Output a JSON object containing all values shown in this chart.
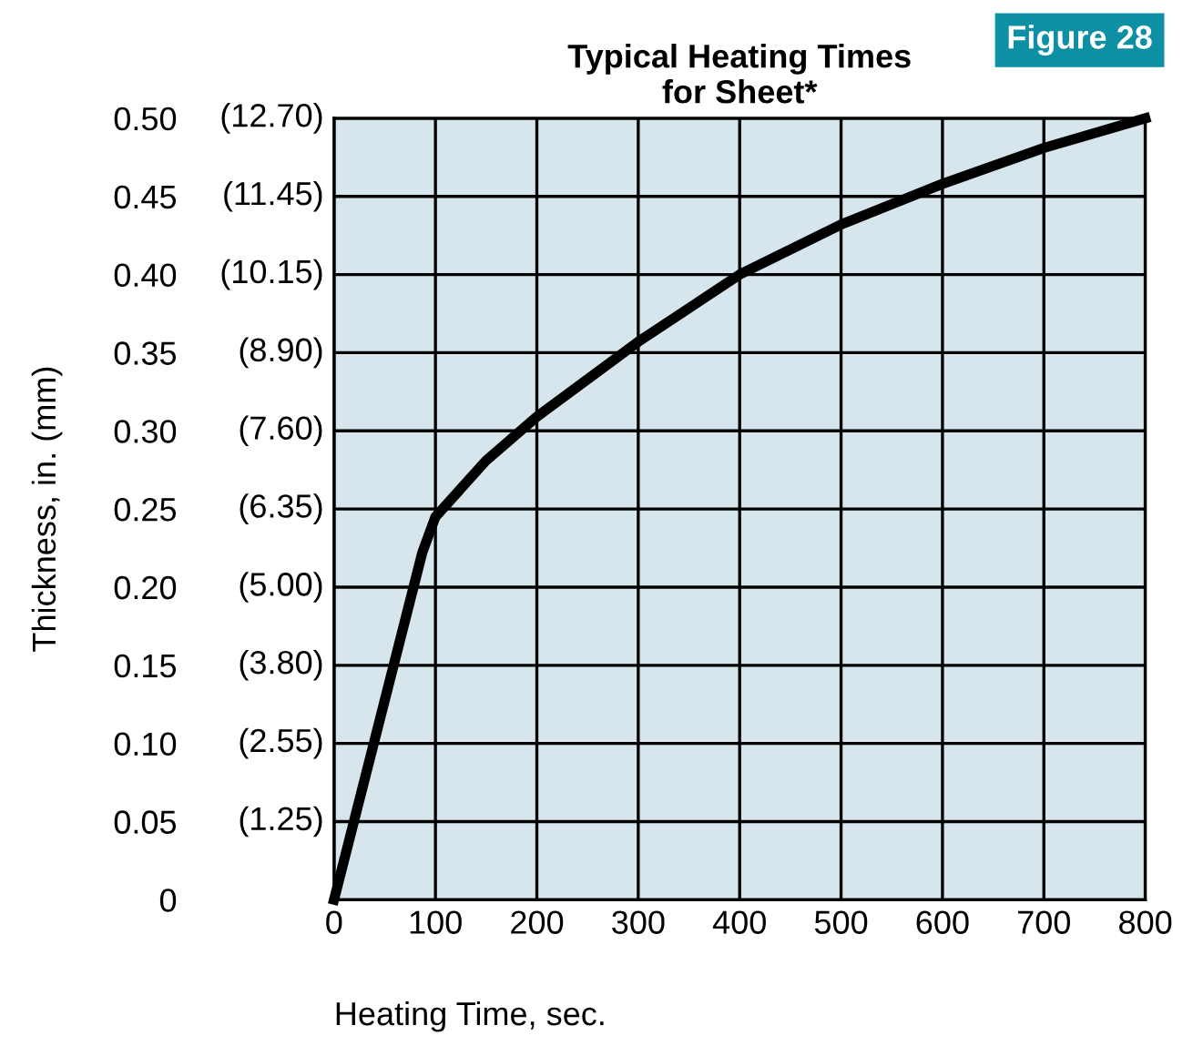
{
  "chart_data": {
    "type": "line",
    "title": "Typical Heating Times\nfor Sheet*",
    "xlabel": "Heating Time, sec.",
    "ylabel": "Thickness, in. (mm)",
    "annotations": [
      "Figure 28",
      "(1.25)",
      "(2.55)",
      "(3.80)",
      "(5.00)",
      "(6.35)",
      "(7.60)",
      "(8.90)",
      "(10.15)",
      "(11.45)",
      "(12.70)"
    ],
    "x": [
      0,
      87,
      100,
      150,
      200,
      300,
      400,
      500,
      600,
      700,
      800
    ],
    "series": [
      {
        "color": "#000000",
        "values": [
          0,
          0.222,
          0.245,
          0.281,
          0.309,
          0.357,
          0.4,
          0.432,
          0.458,
          0.481,
          0.5
        ]
      }
    ],
    "xlim": [
      0,
      800
    ],
    "xticks": [
      0,
      100,
      200,
      300,
      400,
      500,
      600,
      700,
      800
    ],
    "ylim": [
      0,
      0.5
    ],
    "yticks": [
      0,
      0.05,
      {
        "value": 0.1,
        "label": "0.10"
      },
      0.15,
      {
        "value": 0.2,
        "label": "0.20"
      },
      0.25,
      {
        "value": 0.3,
        "label": "0.30"
      },
      0.35,
      {
        "value": 0.4,
        "label": "0.40"
      },
      0.45,
      {
        "value": 0.5,
        "label": "0.50"
      }
    ],
    "grid": true,
    "marker": "none",
    "line_style": "solid"
  }
}
